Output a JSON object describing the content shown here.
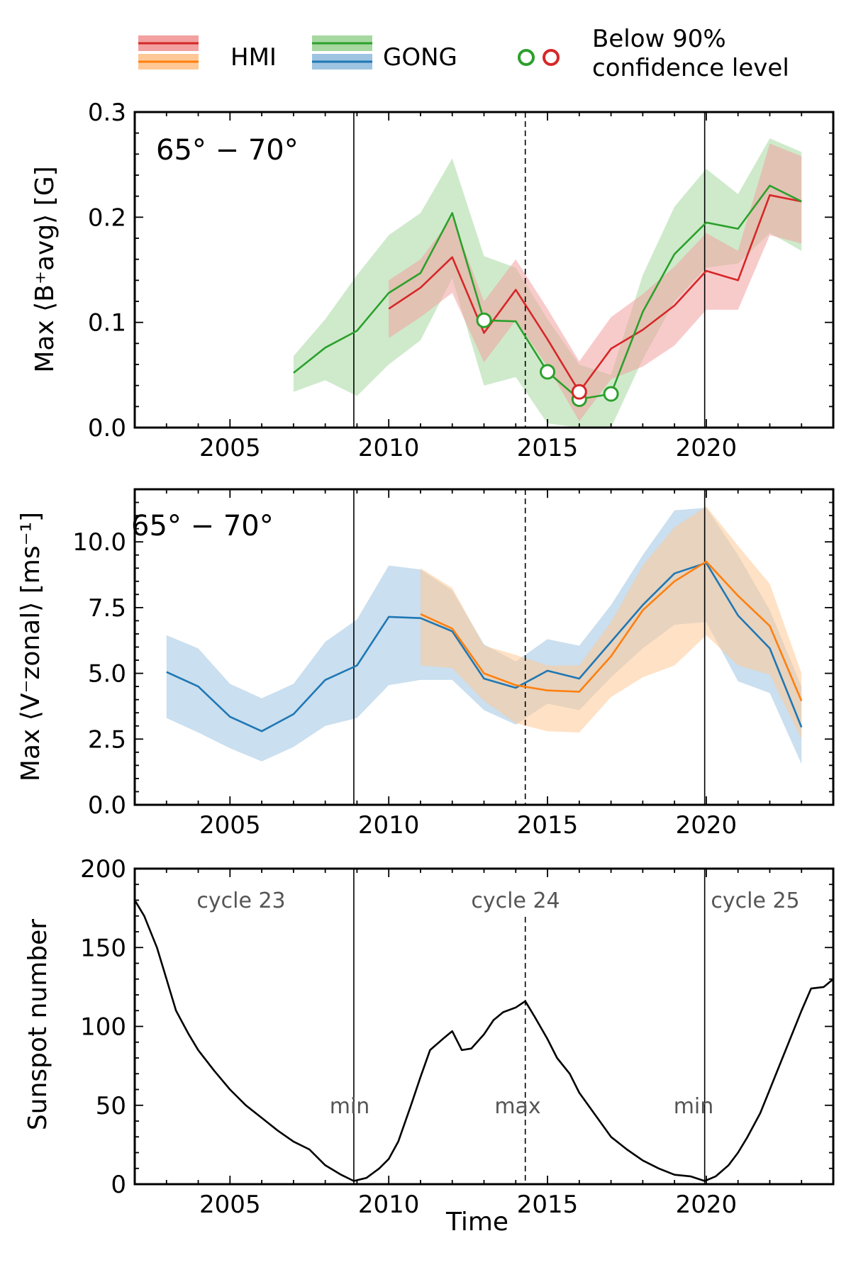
{
  "legend": {
    "hmi_label": "HMI",
    "gong_label": "GONG",
    "confidence_line1": "Below 90%",
    "confidence_line2": "confidence level"
  },
  "colors": {
    "hmi_b": "#d62728",
    "hmi_v": "#ff7f0e",
    "gong_b": "#2ca02c",
    "gong_v": "#1f77b4",
    "hmi_b_band": "#f2a0a0",
    "hmi_v_band": "#ffc896",
    "gong_b_band": "#a6d8a0",
    "gong_v_band": "#9ec4e2",
    "overlap": "#888877",
    "annotation": "#555555"
  },
  "xaxis": {
    "xlim": [
      2002,
      2024
    ],
    "ticks": [
      "2005",
      "2010",
      "2015",
      "2020"
    ],
    "label": "Time"
  },
  "cycle_lines": {
    "min1": 2008.9,
    "max24": 2014.3,
    "min2": 2019.95
  },
  "chart_data": [
    {
      "type": "line",
      "panel": "top",
      "panel_label": "65° − 70°",
      "ylabel": "Max ⟨B⁺avg⟩ [G]",
      "ylim": [
        0,
        0.3
      ],
      "yticks": [
        "0.0",
        "0.1",
        "0.2",
        "0.3"
      ],
      "series": [
        {
          "name": "GONG",
          "x": [
            2007,
            2008,
            2009,
            2010,
            2011,
            2012,
            2013,
            2014,
            2015,
            2016,
            2017,
            2018,
            2019,
            2020,
            2021,
            2022,
            2023
          ],
          "values": [
            0.052,
            0.076,
            0.092,
            0.128,
            0.147,
            0.204,
            0.102,
            0.101,
            0.053,
            0.027,
            0.032,
            0.11,
            0.165,
            0.195,
            0.189,
            0.23,
            0.215
          ],
          "upper": [
            0.068,
            0.103,
            0.145,
            0.183,
            0.204,
            0.256,
            0.163,
            0.152,
            0.103,
            0.06,
            0.05,
            0.145,
            0.21,
            0.246,
            0.222,
            0.275,
            0.262
          ],
          "lower": [
            0.034,
            0.045,
            0.03,
            0.06,
            0.083,
            0.142,
            0.04,
            0.048,
            0.004,
            -0.008,
            0.0,
            0.065,
            0.12,
            0.152,
            0.156,
            0.185,
            0.168
          ]
        },
        {
          "name": "HMI",
          "x": [
            2010,
            2011,
            2012,
            2013,
            2014,
            2015,
            2016,
            2017,
            2018,
            2019,
            2020,
            2021,
            2022,
            2023
          ],
          "values": [
            0.113,
            0.133,
            0.162,
            0.09,
            0.131,
            0.084,
            0.034,
            0.075,
            0.093,
            0.116,
            0.149,
            0.14,
            0.221,
            0.215
          ],
          "upper": [
            0.14,
            0.16,
            0.2,
            0.12,
            0.16,
            0.113,
            0.063,
            0.105,
            0.127,
            0.153,
            0.185,
            0.168,
            0.27,
            0.258
          ],
          "lower": [
            0.085,
            0.105,
            0.128,
            0.062,
            0.102,
            0.058,
            0.006,
            0.046,
            0.058,
            0.078,
            0.112,
            0.112,
            0.183,
            0.175
          ]
        }
      ],
      "low_confidence_points": [
        {
          "series": "GONG",
          "x": 2013,
          "y": 0.102
        },
        {
          "series": "GONG",
          "x": 2015,
          "y": 0.053
        },
        {
          "series": "GONG",
          "x": 2016,
          "y": 0.027
        },
        {
          "series": "GONG",
          "x": 2017,
          "y": 0.032
        },
        {
          "series": "HMI",
          "x": 2016,
          "y": 0.034
        }
      ]
    },
    {
      "type": "line",
      "panel": "middle",
      "panel_label": "65° − 70°",
      "ylabel": "Max ⟨V⁻zonal⟩ [ms⁻¹]",
      "ylim": [
        0,
        12
      ],
      "yticks": [
        "0.0",
        "2.5",
        "5.0",
        "7.5",
        "10.0"
      ],
      "series": [
        {
          "name": "GONG",
          "x": [
            2003,
            2004,
            2005,
            2006,
            2007,
            2008,
            2009,
            2010,
            2011,
            2012,
            2013,
            2014,
            2015,
            2016,
            2017,
            2018,
            2019,
            2020,
            2021,
            2022,
            2023
          ],
          "values": [
            5.05,
            4.5,
            3.35,
            2.8,
            3.45,
            4.75,
            5.3,
            7.15,
            7.1,
            6.6,
            4.8,
            4.45,
            5.1,
            4.8,
            6.2,
            7.6,
            8.8,
            9.2,
            7.2,
            5.95,
            2.95
          ],
          "upper": [
            6.45,
            5.95,
            4.6,
            4.05,
            4.6,
            6.2,
            7.05,
            9.1,
            8.95,
            8.15,
            6.1,
            5.45,
            6.3,
            6.05,
            7.6,
            9.5,
            11.2,
            11.3,
            9.5,
            7.4,
            4.5
          ],
          "lower": [
            3.3,
            2.75,
            2.15,
            1.65,
            2.2,
            3.0,
            3.3,
            4.55,
            4.75,
            4.75,
            3.6,
            3.05,
            3.85,
            3.6,
            4.85,
            5.95,
            6.85,
            6.95,
            4.7,
            4.25,
            1.55
          ]
        },
        {
          "name": "HMI",
          "x": [
            2011,
            2012,
            2013,
            2014,
            2015,
            2016,
            2017,
            2018,
            2019,
            2020,
            2021,
            2022,
            2023
          ],
          "values": [
            7.25,
            6.7,
            5.0,
            4.55,
            4.35,
            4.3,
            5.65,
            7.4,
            8.5,
            9.25,
            7.95,
            6.8,
            3.95
          ],
          "upper": [
            9.0,
            8.25,
            6.05,
            5.7,
            5.3,
            5.3,
            6.95,
            9.1,
            10.55,
            11.35,
            9.85,
            8.4,
            5.0
          ],
          "lower": [
            5.3,
            5.2,
            3.95,
            3.1,
            2.8,
            2.75,
            4.1,
            4.85,
            5.3,
            6.45,
            5.3,
            4.95,
            2.5
          ]
        }
      ]
    },
    {
      "type": "line",
      "panel": "bottom",
      "xlabel": "Time",
      "ylabel": "Sunspot number",
      "ylim": [
        0,
        200
      ],
      "yticks": [
        "0",
        "50",
        "100",
        "150",
        "200"
      ],
      "series": [
        {
          "name": "Sunspot number",
          "x": [
            2002.0,
            2002.3,
            2002.7,
            2003.0,
            2003.3,
            2003.7,
            2004.0,
            2004.5,
            2005.0,
            2005.5,
            2006.0,
            2006.5,
            2007.0,
            2007.5,
            2008.0,
            2008.5,
            2008.9,
            2009.3,
            2009.7,
            2010.0,
            2010.3,
            2010.7,
            2011.0,
            2011.3,
            2011.7,
            2012.0,
            2012.3,
            2012.6,
            2013.0,
            2013.3,
            2013.6,
            2014.0,
            2014.3,
            2014.6,
            2015.0,
            2015.3,
            2015.7,
            2016.0,
            2016.5,
            2017.0,
            2017.5,
            2018.0,
            2018.5,
            2019.0,
            2019.5,
            2019.95,
            2020.3,
            2020.7,
            2021.0,
            2021.3,
            2021.7,
            2022.0,
            2022.3,
            2022.7,
            2023.0,
            2023.3,
            2023.7,
            2024.0
          ],
          "values": [
            180,
            170,
            150,
            130,
            110,
            95,
            85,
            72,
            60,
            50,
            42,
            34,
            27,
            22,
            12,
            6,
            2,
            4,
            10,
            16,
            27,
            50,
            68,
            85,
            92,
            97,
            85,
            86,
            95,
            104,
            109,
            112,
            116,
            106,
            92,
            80,
            70,
            58,
            44,
            30,
            22,
            15,
            10,
            6,
            5,
            2,
            5,
            12,
            20,
            30,
            45,
            60,
            75,
            95,
            110,
            124,
            125,
            130
          ]
        }
      ],
      "annotations": {
        "cycle23": "cycle 23",
        "cycle24": "cycle 24",
        "cycle25": "cycle 25",
        "min_left": "min",
        "max_mid": "max",
        "min_right": "min"
      }
    }
  ]
}
